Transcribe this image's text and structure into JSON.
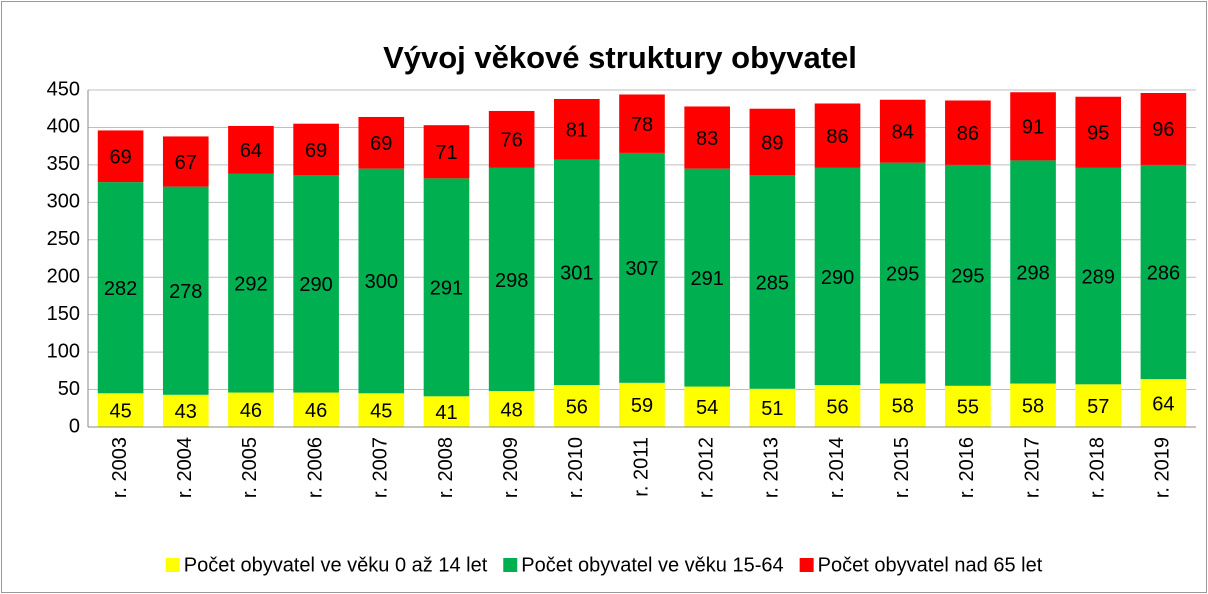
{
  "chart_data": {
    "type": "bar",
    "stacked": true,
    "title": "Vývoj věkové struktury obyvatel",
    "categories": [
      "r. 2003",
      "r. 2004",
      "r. 2005",
      "r. 2006",
      "r. 2007",
      "r. 2008",
      "r. 2009",
      "r. 2010",
      "r. 2011",
      "r. 2012",
      "r. 2013",
      "r. 2014",
      "r. 2015",
      "r. 2016",
      "r. 2017",
      "r. 2018",
      "r. 2019"
    ],
    "series": [
      {
        "name": "Počet obyvatel ve věku 0 až 14 let",
        "color": "#ffff00",
        "values": [
          45,
          43,
          46,
          46,
          45,
          41,
          48,
          56,
          59,
          54,
          51,
          56,
          58,
          55,
          58,
          57,
          64
        ]
      },
      {
        "name": "Počet obyvatel ve věku 15-64",
        "color": "#00b050",
        "values": [
          282,
          278,
          292,
          290,
          300,
          291,
          298,
          301,
          307,
          291,
          285,
          290,
          295,
          295,
          298,
          289,
          286
        ]
      },
      {
        "name": "Počet obyvatel nad 65 let",
        "color": "#ff0000",
        "values": [
          69,
          67,
          64,
          69,
          69,
          71,
          76,
          81,
          78,
          83,
          89,
          86,
          84,
          86,
          91,
          95,
          96
        ]
      }
    ],
    "ylim": [
      0,
      450
    ],
    "yticks": [
      0,
      50,
      100,
      150,
      200,
      250,
      300,
      350,
      400,
      450
    ],
    "grid": true,
    "legend": "bottom"
  }
}
